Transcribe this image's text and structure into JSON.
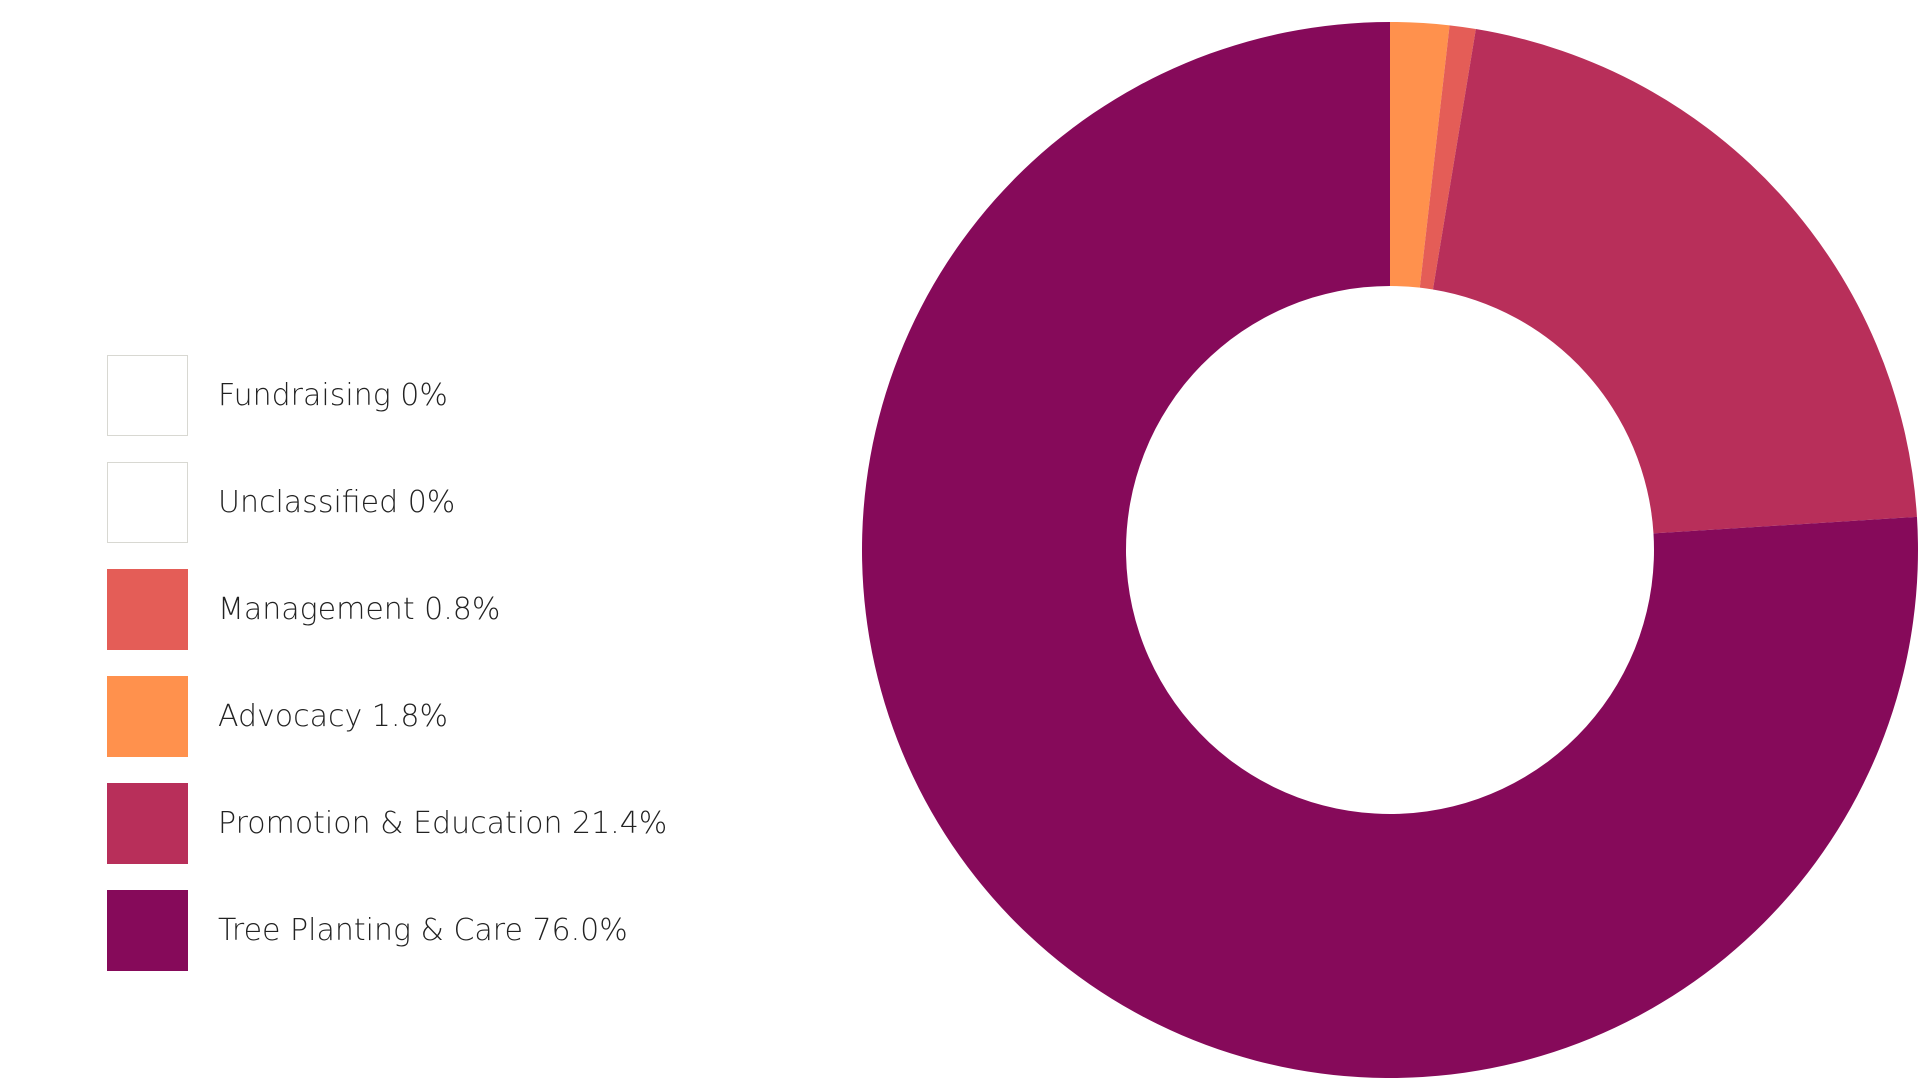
{
  "chart_data": {
    "type": "pie",
    "categories": [
      "Fundraising",
      "Unclassified",
      "Management",
      "Advocacy",
      "Promotion & Education",
      "Tree Planting & Care"
    ],
    "values": [
      0,
      0,
      0.8,
      1.8,
      21.4,
      76.0
    ],
    "colors": [
      "#ffffff",
      "#ffffff",
      "#e45d57",
      "#ff914d",
      "#b82f5a",
      "#860a5a"
    ],
    "legend": {
      "placement": "left",
      "items": [
        {
          "label": "Fundraising 0%",
          "color": "#ffffff"
        },
        {
          "label": "Unclassified 0%",
          "color": "#ffffff"
        },
        {
          "label": "Management 0.8%",
          "color": "#e45d57"
        },
        {
          "label": "Advocacy 1.8%",
          "color": "#ff914d"
        },
        {
          "label": "Promotion & Education 21.4%",
          "color": "#b82f5a"
        },
        {
          "label": "Tree Planting & Care 76.0%",
          "color": "#860a5a"
        }
      ]
    },
    "slice_order": [
      "Advocacy",
      "Management",
      "Promotion & Education",
      "Tree Planting & Care"
    ]
  }
}
